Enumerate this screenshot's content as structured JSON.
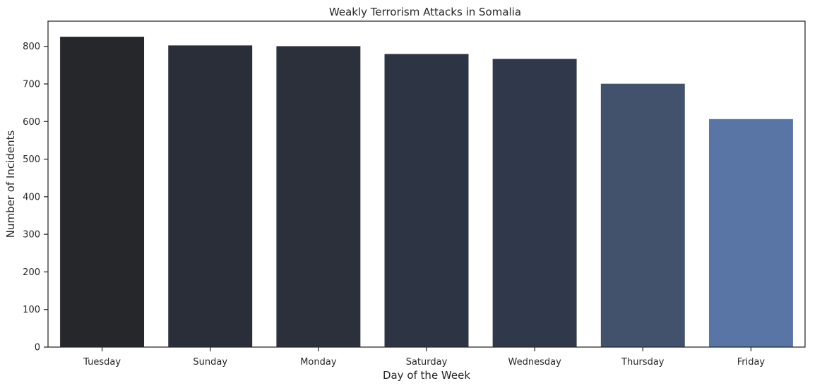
{
  "chart_data": {
    "type": "bar",
    "title": "Weakly Terrorism Attacks in Somalia",
    "xlabel": "Day of the Week",
    "ylabel": "Number of Incidents",
    "categories": [
      "Tuesday",
      "Sunday",
      "Monday",
      "Saturday",
      "Wednesday",
      "Thursday",
      "Friday"
    ],
    "values": [
      826,
      803,
      801,
      780,
      767,
      701,
      607
    ],
    "colors": [
      "#25272b",
      "#292e38",
      "#2b303b",
      "#2d3443",
      "#30384b",
      "#42526d",
      "#5875a5"
    ],
    "ylim": [
      0,
      867
    ],
    "yticks": [
      0,
      100,
      200,
      300,
      400,
      500,
      600,
      700,
      800
    ],
    "grid": false,
    "legend": "none"
  }
}
